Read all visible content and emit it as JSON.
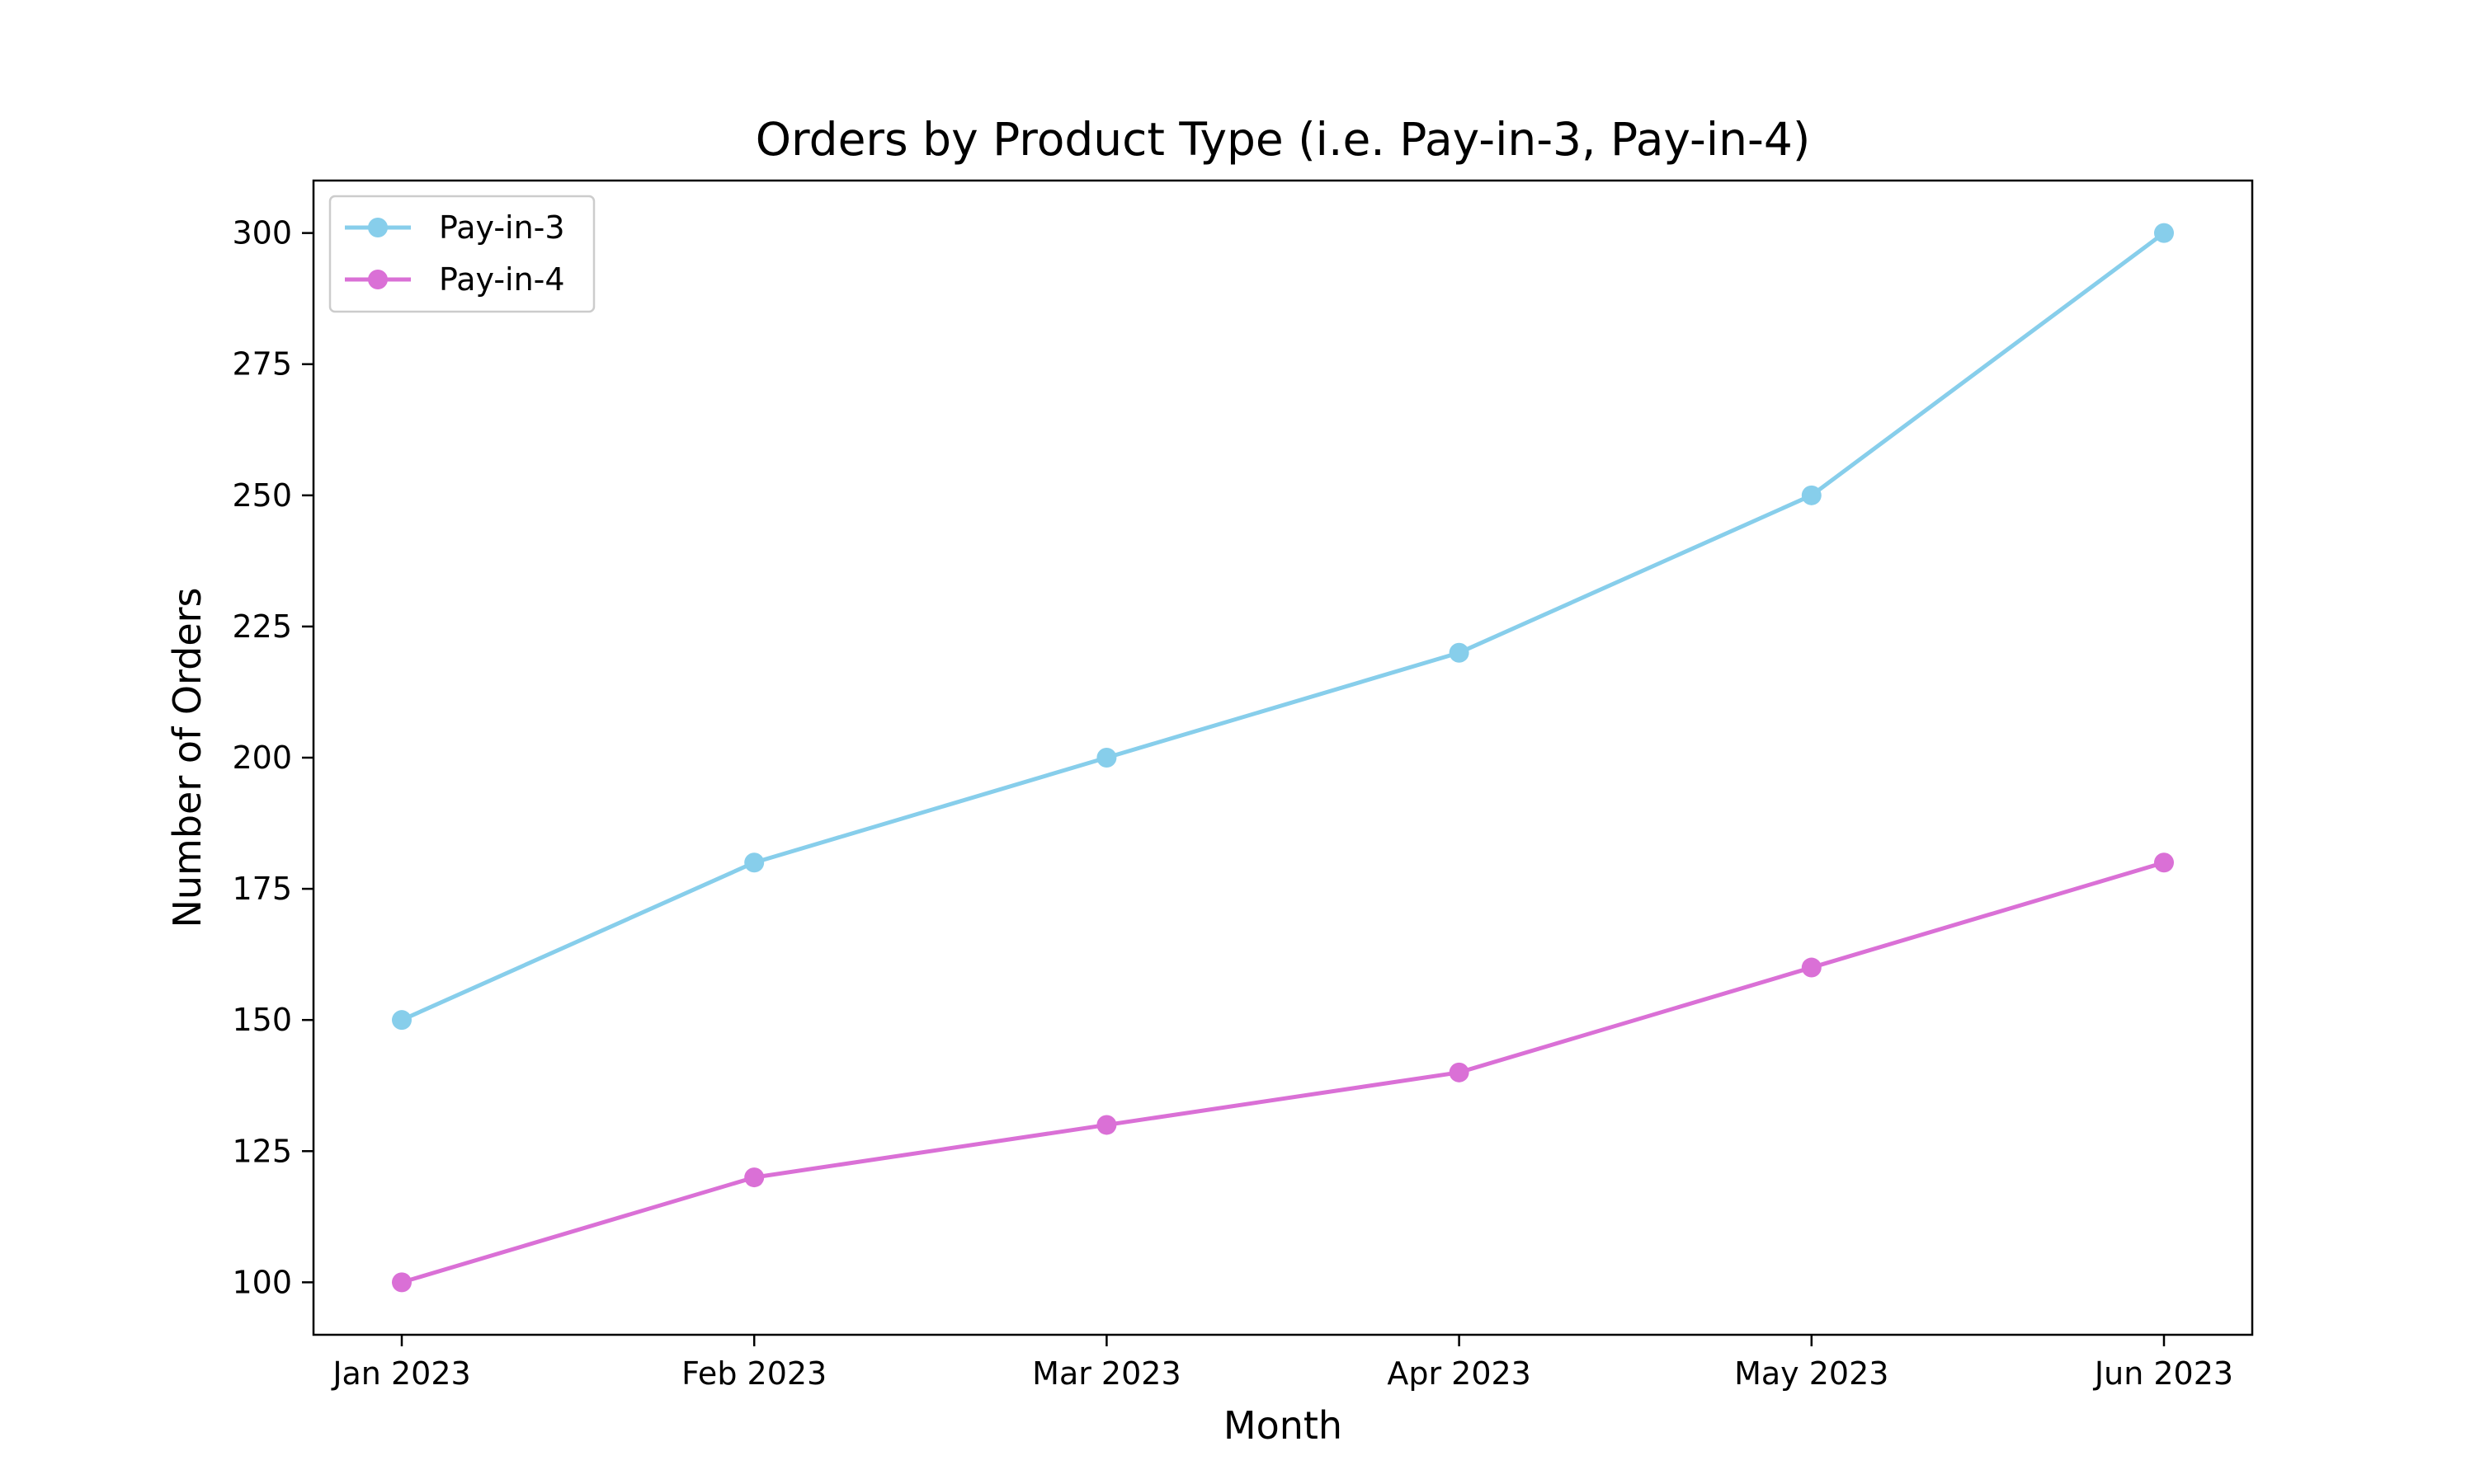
{
  "chart_data": {
    "type": "line",
    "title": "Orders by Product Type (i.e. Pay-in-3, Pay-in-4)",
    "xlabel": "Month",
    "ylabel": "Number of Orders",
    "categories": [
      "Jan 2023",
      "Feb 2023",
      "Mar 2023",
      "Apr 2023",
      "May 2023",
      "Jun 2023"
    ],
    "ylim": [
      90,
      310
    ],
    "yticks": [
      100,
      125,
      150,
      175,
      200,
      225,
      250,
      275,
      300
    ],
    "grid": false,
    "legend_position": "top-left",
    "marker": "circle",
    "series": [
      {
        "name": "Pay-in-3",
        "color": "#87CEEB",
        "values": [
          150,
          180,
          200,
          220,
          250,
          300
        ]
      },
      {
        "name": "Pay-in-4",
        "color": "#DA70D6",
        "values": [
          100,
          120,
          130,
          140,
          160,
          180
        ]
      }
    ]
  }
}
